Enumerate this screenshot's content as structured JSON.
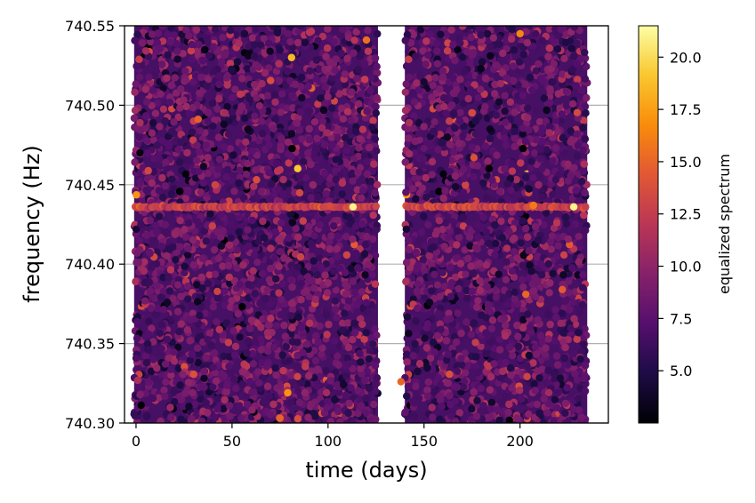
{
  "chart_data": {
    "type": "scatter",
    "xlabel": "time (days)",
    "ylabel": "frequency (Hz)",
    "xlim": [
      -6,
      246
    ],
    "ylim": [
      740.3,
      740.55
    ],
    "x_ticks": [
      0,
      50,
      100,
      150,
      200
    ],
    "x_tick_labels": [
      "0",
      "50",
      "100",
      "150",
      "200"
    ],
    "y_ticks": [
      740.3,
      740.35,
      740.4,
      740.45,
      740.5,
      740.55
    ],
    "y_tick_labels": [
      "740.30",
      "740.35",
      "740.40",
      "740.45",
      "740.50",
      "740.55"
    ],
    "grid": "horizontal",
    "colormap": "inferno",
    "data_segments": [
      {
        "time_start": -1,
        "time_end": 126
      },
      {
        "time_start": 140,
        "time_end": 235
      }
    ],
    "line_feature": {
      "frequency": 740.436,
      "level": 13.0
    },
    "bright_points": [
      {
        "time": 113,
        "frequency": 740.436,
        "value": 21.0
      },
      {
        "time": 228,
        "frequency": 740.436,
        "value": 21.0
      },
      {
        "time": 81,
        "frequency": 740.53,
        "value": 18.5
      },
      {
        "time": 79,
        "frequency": 740.319,
        "value": 17.0
      },
      {
        "time": 200,
        "frequency": 740.545,
        "value": 16.5
      },
      {
        "time": 207,
        "frequency": 740.437,
        "value": 16.0
      },
      {
        "time": 120,
        "frequency": 740.541,
        "value": 15.5
      },
      {
        "time": 203,
        "frequency": 740.381,
        "value": 15.0
      },
      {
        "time": 222,
        "frequency": 740.384,
        "value": 14.5
      },
      {
        "time": 75,
        "frequency": 740.303,
        "value": 15.0
      },
      {
        "time": 138,
        "frequency": 740.326,
        "value": 15.0
      },
      {
        "time": 176,
        "frequency": 740.467,
        "value": 14.0
      }
    ],
    "colorbar": {
      "label": "equalized spectrum",
      "range": [
        2.5,
        21.5
      ],
      "ticks": [
        5.0,
        7.5,
        10.0,
        12.5,
        15.0,
        17.5,
        20.0
      ],
      "tick_labels": [
        "5.0",
        "7.5",
        "10.0",
        "12.5",
        "15.0",
        "17.5",
        "20.0"
      ]
    }
  }
}
